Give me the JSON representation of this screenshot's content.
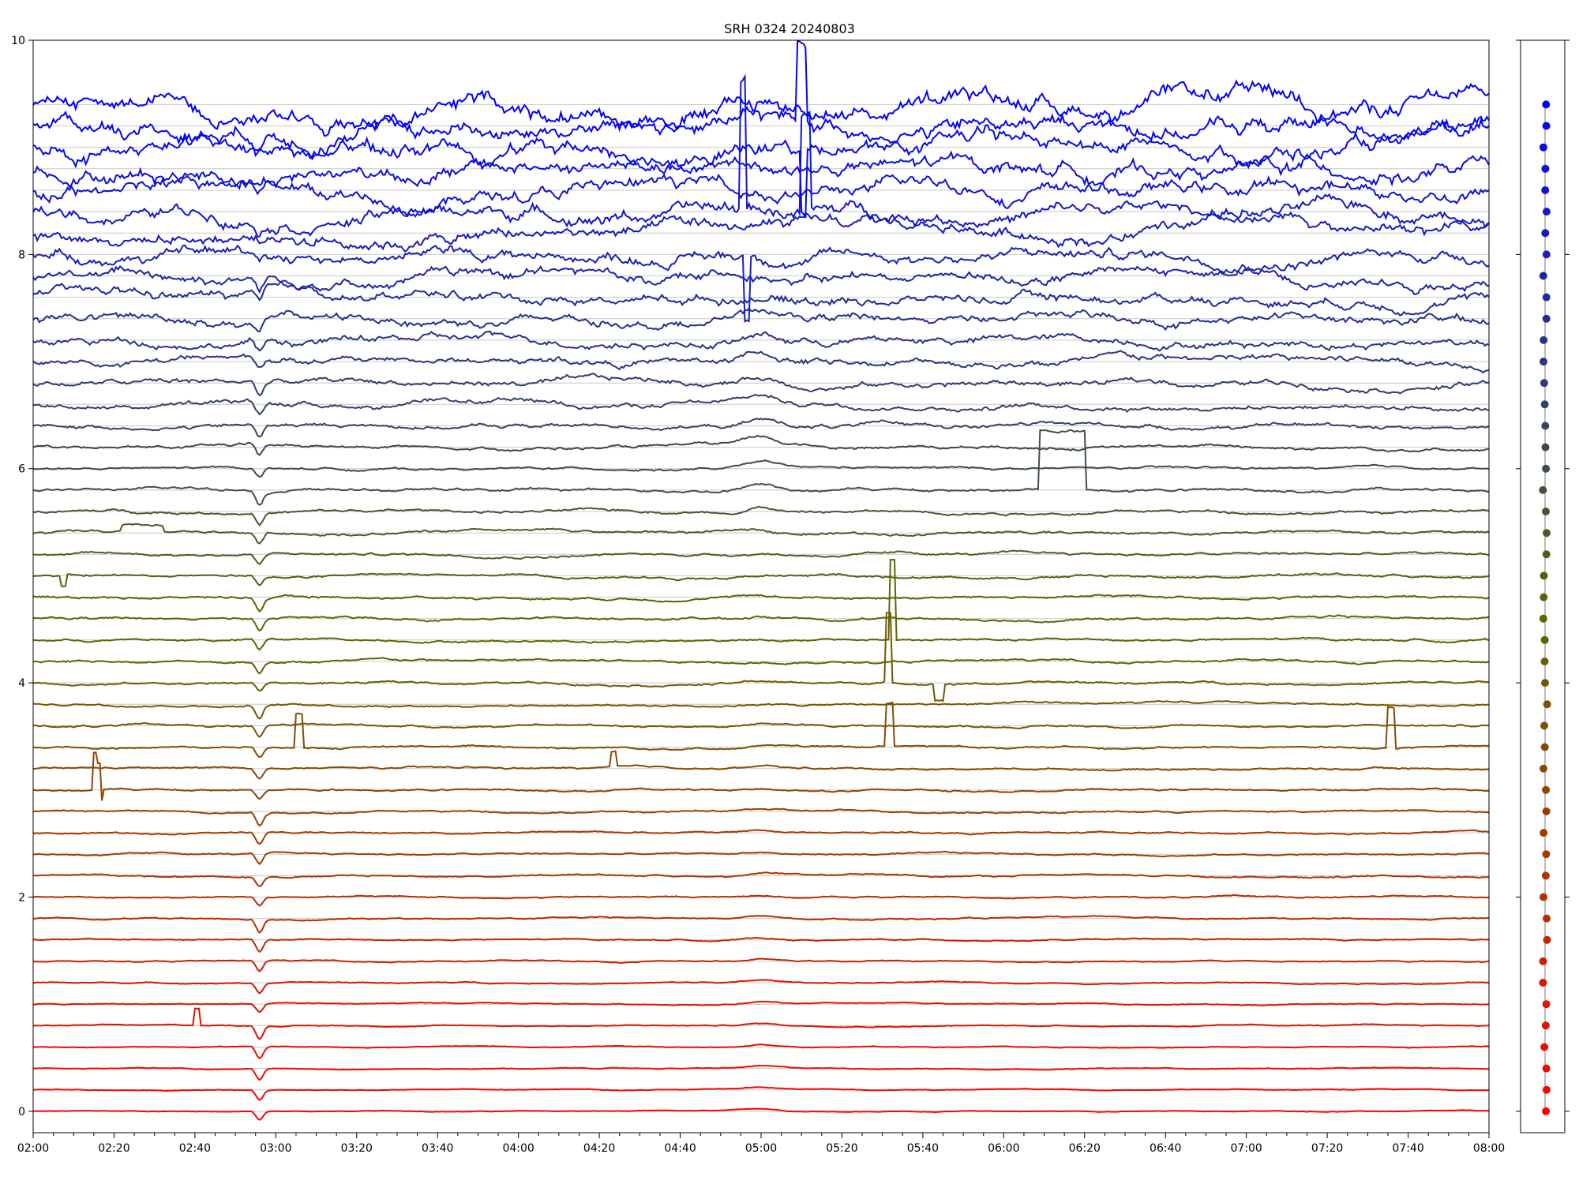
{
  "chart_data": [
    {
      "type": "line",
      "title": "SRH 0324 20240803",
      "xlabel": "",
      "ylabel": "",
      "x_ticks": [
        "02:00",
        "02:20",
        "02:40",
        "03:00",
        "03:20",
        "03:40",
        "04:00",
        "04:20",
        "04:40",
        "05:00",
        "05:20",
        "05:40",
        "06:00",
        "06:20",
        "06:40",
        "07:00",
        "07:20",
        "07:40",
        "08:00"
      ],
      "xlim": [
        "02:00",
        "08:00"
      ],
      "y_ticks": [
        0,
        2,
        4,
        6,
        8,
        10
      ],
      "ylim": [
        -0.2,
        10
      ],
      "grid": "horizontal reference lines at each trace baseline",
      "legend": "none",
      "series_count": 48,
      "series_spacing": 0.2,
      "color_start": "#ff0000",
      "color_mid": "#556b00",
      "color_end": "#0000ff",
      "common_dip_time": "02:56",
      "common_bump_time": "04:56",
      "events": [
        {
          "series": 4,
          "time": "02:40",
          "delta": 0.16,
          "width_min": 1,
          "kind": "spike"
        },
        {
          "series": 15,
          "time": "02:15",
          "delta": 0.35,
          "width_min": 1.5,
          "kind": "spike"
        },
        {
          "series": 15,
          "time": "02:16",
          "delta": -0.1,
          "width_min": 1,
          "kind": "spike"
        },
        {
          "series": 17,
          "time": "03:05",
          "delta": 0.32,
          "width_min": 1.5,
          "kind": "spike"
        },
        {
          "series": 17,
          "time": "05:31",
          "delta": 0.4,
          "width_min": 1.5,
          "kind": "spike"
        },
        {
          "series": 17,
          "time": "07:35",
          "delta": 0.38,
          "width_min": 1.5,
          "kind": "spike"
        },
        {
          "series": 16,
          "time": "04:23",
          "delta": 0.14,
          "width_min": 1,
          "kind": "spike"
        },
        {
          "series": 22,
          "time": "05:32",
          "delta": 0.75,
          "width_min": 1,
          "kind": "spike"
        },
        {
          "series": 20,
          "time": "05:31",
          "delta": 0.65,
          "width_min": 1,
          "kind": "spike"
        },
        {
          "series": 29,
          "time": "06:09",
          "delta": 0.55,
          "width_min": 11,
          "kind": "plateau"
        },
        {
          "series": 27,
          "time": "02:22",
          "delta": 0.05,
          "width_min": 10,
          "kind": "plateau"
        },
        {
          "series": 20,
          "time": "05:43",
          "delta": -0.15,
          "width_min": 2,
          "kind": "dip"
        },
        {
          "series": 25,
          "time": "02:07",
          "delta": -0.1,
          "width_min": 1,
          "kind": "dip"
        },
        {
          "series": 42,
          "time": "04:55",
          "delta": 1.2,
          "width_min": 1,
          "kind": "spike"
        },
        {
          "series": 42,
          "time": "05:10",
          "delta": 0.9,
          "width_min": 2,
          "kind": "spike"
        },
        {
          "series": 40,
          "time": "04:56",
          "delta": -0.6,
          "width_min": 1,
          "kind": "spike"
        },
        {
          "series": 46,
          "time": "05:09",
          "delta": 0.75,
          "width_min": 2,
          "kind": "spike"
        },
        {
          "series": 45,
          "time": "05:10",
          "delta": -0.6,
          "width_min": 1,
          "kind": "spike"
        }
      ]
    },
    {
      "type": "scatter",
      "title": "",
      "points": 48,
      "ylim": [
        -0.2,
        10
      ],
      "y_values_note": "one marker per trace baseline"
    }
  ]
}
